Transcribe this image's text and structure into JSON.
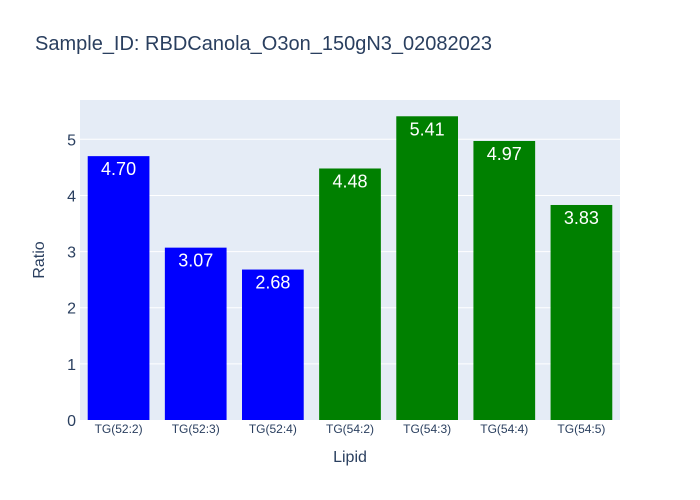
{
  "chart_data": {
    "type": "bar",
    "title": "Sample_ID: RBDCanola_O3on_150gN3_02082023",
    "xlabel": "Lipid",
    "ylabel": "Ratio",
    "categories": [
      "TG(52:2)",
      "TG(52:3)",
      "TG(52:4)",
      "TG(54:2)",
      "TG(54:3)",
      "TG(54:4)",
      "TG(54:5)"
    ],
    "values": [
      4.7,
      3.07,
      2.68,
      4.48,
      5.41,
      4.97,
      3.83
    ],
    "data_labels": [
      "4.70",
      "3.07",
      "2.68",
      "4.48",
      "5.41",
      "4.97",
      "3.83"
    ],
    "bar_colors": [
      "#0000ff",
      "#0000ff",
      "#0000ff",
      "#008000",
      "#008000",
      "#008000",
      "#008000"
    ],
    "yticks": [
      0,
      1,
      2,
      3,
      4,
      5
    ],
    "ylim": [
      0,
      5.7
    ],
    "grid": true,
    "plot_bg": "#e5ecf6"
  }
}
